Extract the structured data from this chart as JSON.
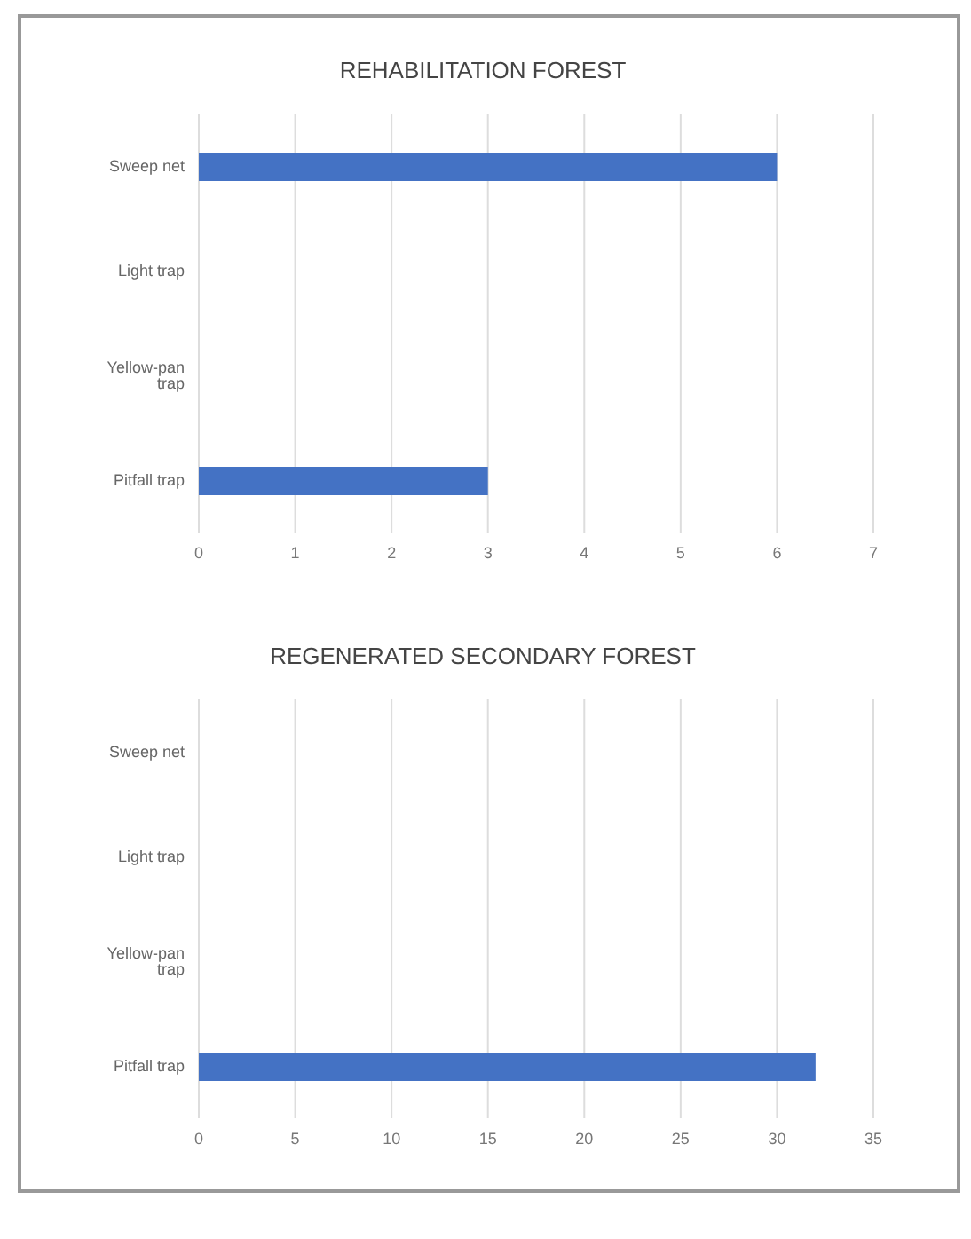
{
  "chart_data": [
    {
      "type": "bar",
      "orientation": "horizontal",
      "title": "REHABILITATION FOREST",
      "categories": [
        "Sweep net",
        "Light trap",
        "Yellow-pan trap",
        "Pitfall trap"
      ],
      "values": [
        6,
        0,
        0,
        3
      ],
      "color": "#4472c4",
      "xlim": [
        0,
        7
      ],
      "xticks": [
        0,
        1,
        2,
        3,
        4,
        5,
        6,
        7
      ],
      "grid": "x"
    },
    {
      "type": "bar",
      "orientation": "horizontal",
      "title": "REGENERATED SECONDARY FOREST",
      "categories": [
        "Sweep net",
        "Light trap",
        "Yellow-pan trap",
        "Pitfall trap"
      ],
      "values": [
        0,
        0,
        0,
        32
      ],
      "color": "#4472c4",
      "xlim": [
        0,
        35
      ],
      "xticks": [
        0,
        5,
        10,
        15,
        20,
        25,
        30,
        35
      ],
      "grid": "x"
    }
  ]
}
